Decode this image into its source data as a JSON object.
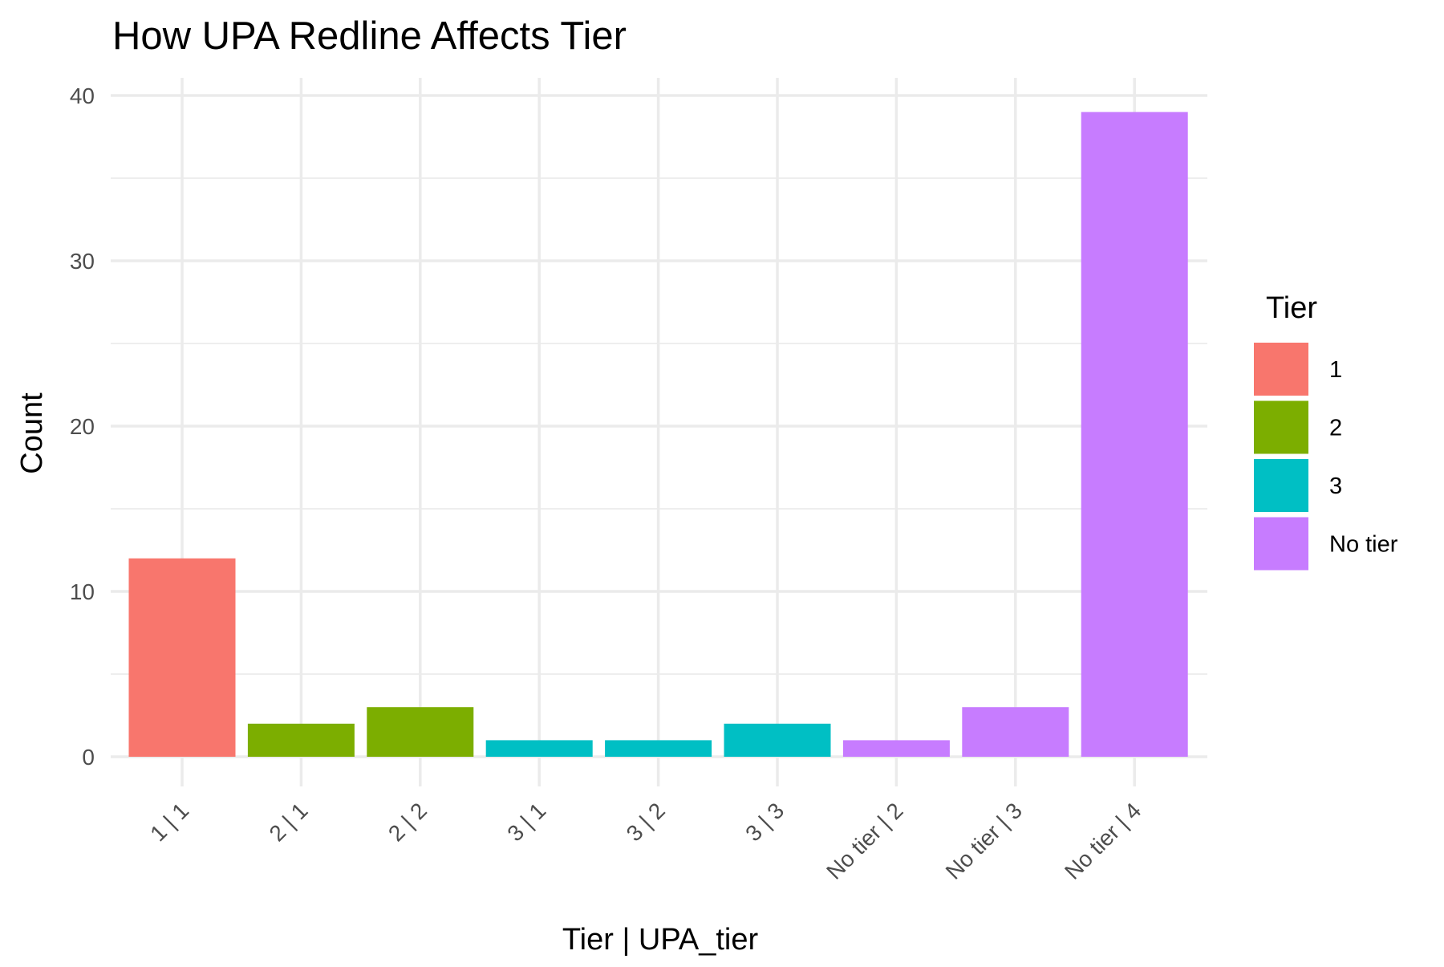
{
  "chart_data": {
    "type": "bar",
    "title": "How UPA Redline Affects Tier",
    "xlabel": "Tier | UPA_tier",
    "ylabel": "Count",
    "ylim": [
      0,
      41
    ],
    "y_ticks": [
      0,
      10,
      20,
      30,
      40
    ],
    "y_tick_labels": [
      "0",
      "10",
      "20",
      "30",
      "40"
    ],
    "grid": true,
    "categories": [
      "1 | 1",
      "2 | 1",
      "2 | 2",
      "3 | 1",
      "3 | 2",
      "3 | 3",
      "No tier | 2",
      "No tier | 3",
      "No tier | 4"
    ],
    "values": [
      12,
      2,
      3,
      1,
      1,
      2,
      1,
      3,
      39
    ],
    "fill_group": [
      "1",
      "2",
      "2",
      "3",
      "3",
      "3",
      "No tier",
      "No tier",
      "No tier"
    ],
    "legend": {
      "title": "Tier",
      "placement": "right",
      "entries": [
        {
          "label": "1",
          "color": "#F8766D"
        },
        {
          "label": "2",
          "color": "#7CAE00"
        },
        {
          "label": "3",
          "color": "#00BFC4"
        },
        {
          "label": "No tier",
          "color": "#C77CFF"
        }
      ]
    }
  }
}
